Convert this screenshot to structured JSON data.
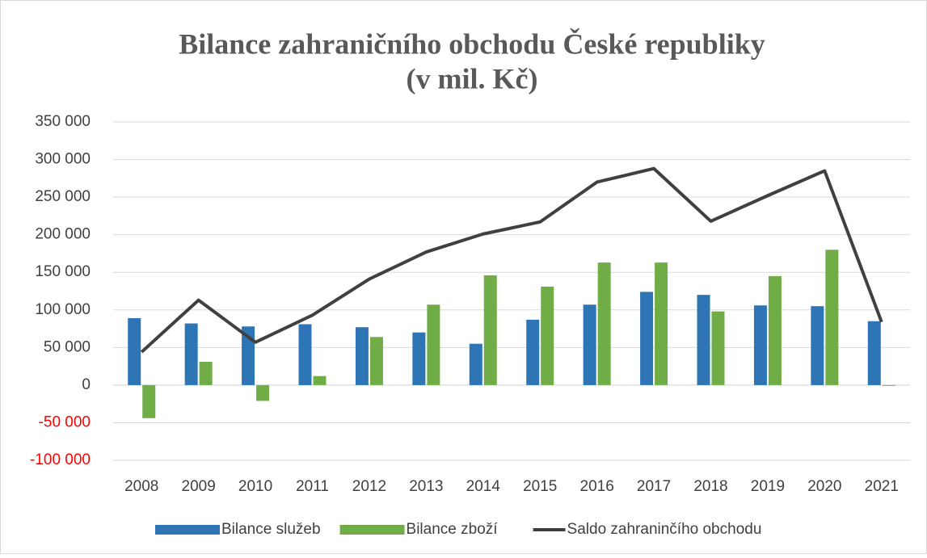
{
  "chart_data": {
    "type": "combo",
    "title": "Bilance zahraničního obchodu České republiky",
    "subtitle": "(v mil. Kč)",
    "categories": [
      "2008",
      "2009",
      "2010",
      "2011",
      "2012",
      "2013",
      "2014",
      "2015",
      "2016",
      "2017",
      "2018",
      "2019",
      "2020",
      "2021"
    ],
    "series": [
      {
        "name": "Bilance služeb",
        "type": "bar",
        "color": "#2e75b6",
        "values": [
          89000,
          82000,
          78000,
          81000,
          77000,
          70000,
          55000,
          87000,
          107000,
          124000,
          120000,
          106000,
          105000,
          85000
        ]
      },
      {
        "name": "Bilance zboží",
        "type": "bar",
        "color": "#70ad47",
        "values": [
          -44000,
          31000,
          -21000,
          12000,
          64000,
          107000,
          146000,
          131000,
          163000,
          163000,
          98000,
          145000,
          180000,
          -1000
        ]
      },
      {
        "name": "Saldo zahraninčího obchodu",
        "type": "line",
        "color": "#404040",
        "values": [
          44000,
          113000,
          57000,
          93000,
          141000,
          177000,
          201000,
          217000,
          270000,
          288000,
          218000,
          252000,
          285000,
          84000
        ]
      }
    ],
    "ylim": [
      -100000,
      350000
    ],
    "yticks": [
      {
        "value": -100000,
        "label": "-100 000"
      },
      {
        "value": -50000,
        "label": "-50 000"
      },
      0,
      {
        "value": 50000,
        "label": "50 000"
      },
      {
        "value": 100000,
        "label": "100 000"
      },
      {
        "value": 150000,
        "label": "150 000"
      },
      {
        "value": 200000,
        "label": "200 000"
      },
      {
        "value": 250000,
        "label": "250 000"
      },
      {
        "value": 300000,
        "label": "300 000"
      },
      {
        "value": 350000,
        "label": "350 000"
      }
    ],
    "negative_tick_color": "#ff0000",
    "grid": true,
    "legend": "bottom"
  }
}
